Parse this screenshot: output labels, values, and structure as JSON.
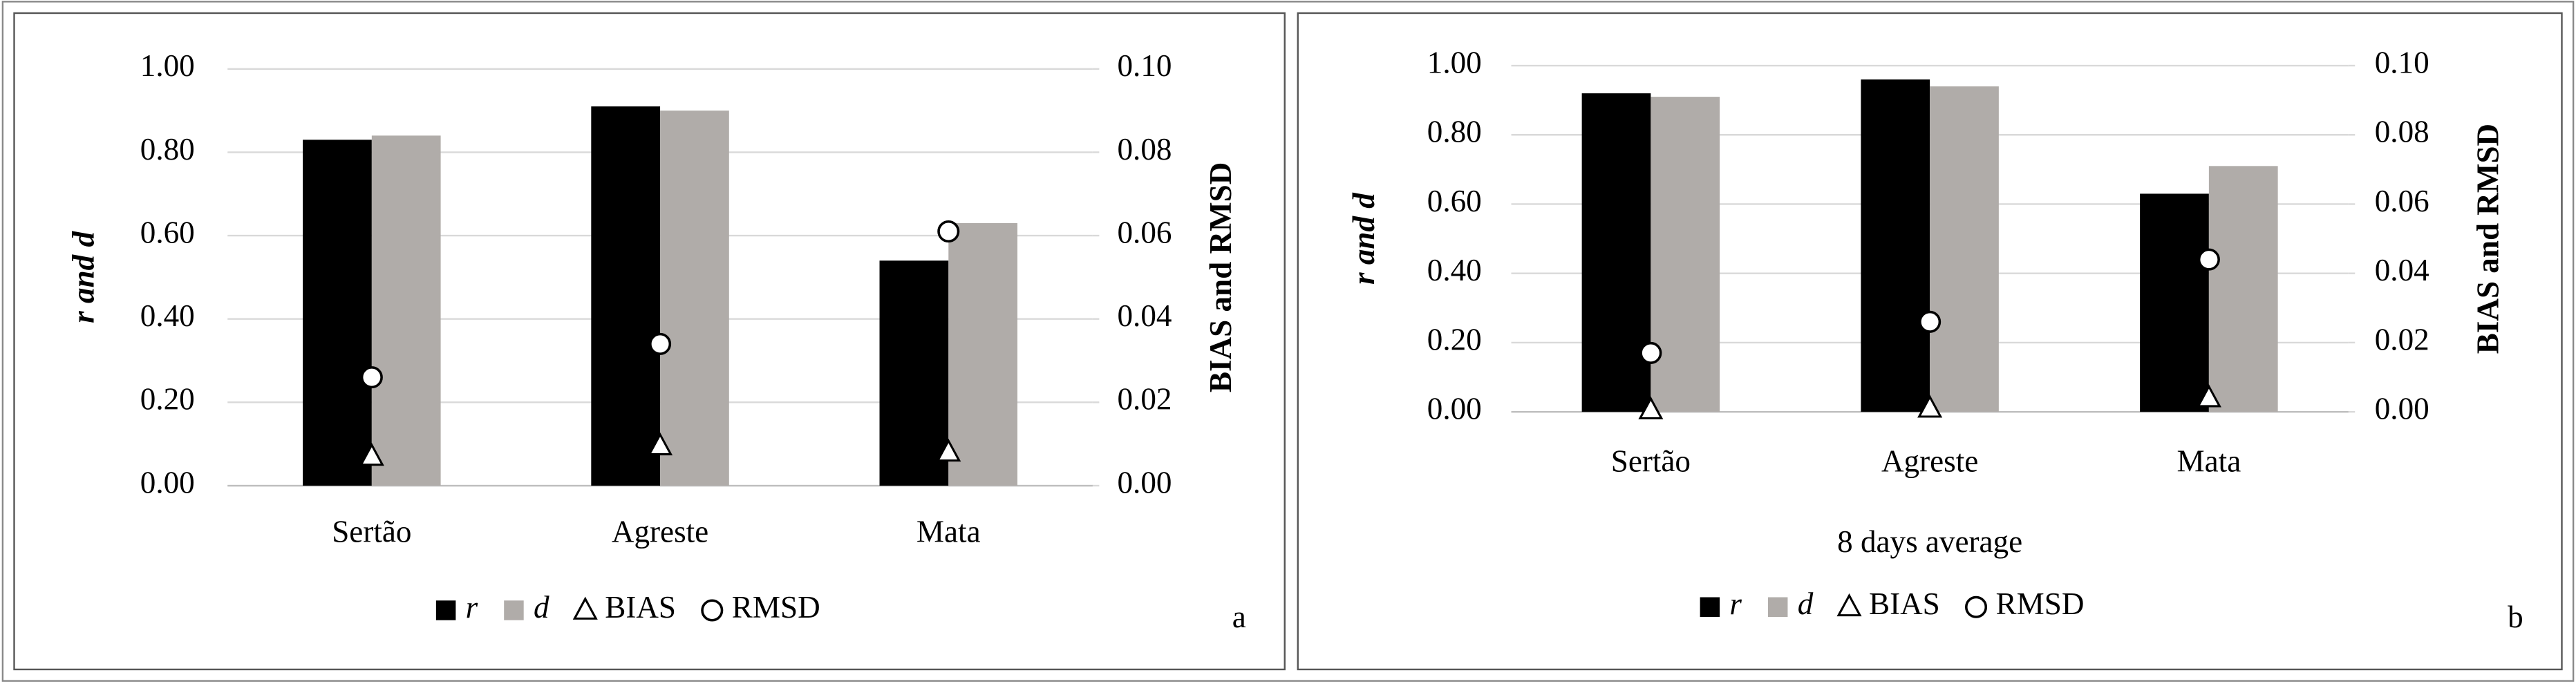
{
  "chart_data": [
    {
      "type": "bar",
      "panel_label": "a",
      "y_label": "r and d",
      "y2_label": "BIAS and RMSD",
      "categories": [
        "Sertão",
        "Agreste",
        "Mata"
      ],
      "series": [
        {
          "name": "r",
          "color": "#000000",
          "values": [
            0.83,
            0.91,
            0.54
          ]
        },
        {
          "name": "d",
          "color": "#b0aca9",
          "values": [
            0.84,
            0.9,
            0.63
          ]
        },
        {
          "name": "BIAS",
          "color": "#ffffff",
          "marker": "triangle",
          "axis": "y2",
          "values": [
            0.007,
            0.0095,
            0.008
          ]
        },
        {
          "name": "RMSD",
          "color": "#ffffff",
          "marker": "circle",
          "axis": "y2",
          "values": [
            0.026,
            0.034,
            0.061
          ]
        }
      ],
      "ylim": [
        0,
        1
      ],
      "yticks": [
        {
          "value": 0,
          "label": "0.00"
        },
        {
          "value": 0.2,
          "label": "0.20"
        },
        {
          "value": 0.4,
          "label": "0.40"
        },
        {
          "value": 0.6,
          "label": "0.60"
        },
        {
          "value": 0.8,
          "label": "0.80"
        },
        {
          "value": 1,
          "label": "1.00"
        }
      ],
      "y2lim": [
        0,
        0.1
      ],
      "y2ticks": [
        {
          "value": 0,
          "label": "0.00"
        },
        {
          "value": 0.02,
          "label": "0.02"
        },
        {
          "value": 0.04,
          "label": "0.04"
        },
        {
          "value": 0.06,
          "label": "0.06"
        },
        {
          "value": 0.08,
          "label": "0.08"
        },
        {
          "value": 0.1,
          "label": "0.10"
        }
      ],
      "grid": true,
      "legend": "bottom"
    },
    {
      "type": "bar",
      "panel_label": "b",
      "y_label": "r and d",
      "y2_label": "BIAS and RMSD",
      "x_label": "8 days average",
      "categories": [
        "Sertão",
        "Agreste",
        "Mata"
      ],
      "series": [
        {
          "name": "r",
          "color": "#000000",
          "values": [
            0.92,
            0.96,
            0.63
          ]
        },
        {
          "name": "d",
          "color": "#b0aca9",
          "values": [
            0.91,
            0.94,
            0.71
          ]
        },
        {
          "name": "BIAS",
          "color": "#ffffff",
          "marker": "triangle",
          "axis": "y2",
          "values": [
            0.0005,
            0.001,
            0.004
          ]
        },
        {
          "name": "RMSD",
          "color": "#ffffff",
          "marker": "circle",
          "axis": "y2",
          "values": [
            0.017,
            0.026,
            0.044
          ]
        }
      ],
      "ylim": [
        0,
        1
      ],
      "yticks": [
        {
          "value": 0,
          "label": "0.00"
        },
        {
          "value": 0.2,
          "label": "0.20"
        },
        {
          "value": 0.4,
          "label": "0.40"
        },
        {
          "value": 0.6,
          "label": "0.60"
        },
        {
          "value": 0.8,
          "label": "0.80"
        },
        {
          "value": 1,
          "label": "1.00"
        }
      ],
      "y2lim": [
        0,
        0.1
      ],
      "y2ticks": [
        {
          "value": 0,
          "label": "0.00"
        },
        {
          "value": 0.02,
          "label": "0.02"
        },
        {
          "value": 0.04,
          "label": "0.04"
        },
        {
          "value": 0.06,
          "label": "0.06"
        },
        {
          "value": 0.08,
          "label": "0.08"
        },
        {
          "value": 0.1,
          "label": "0.10"
        }
      ],
      "grid": true,
      "legend": "bottom"
    }
  ]
}
